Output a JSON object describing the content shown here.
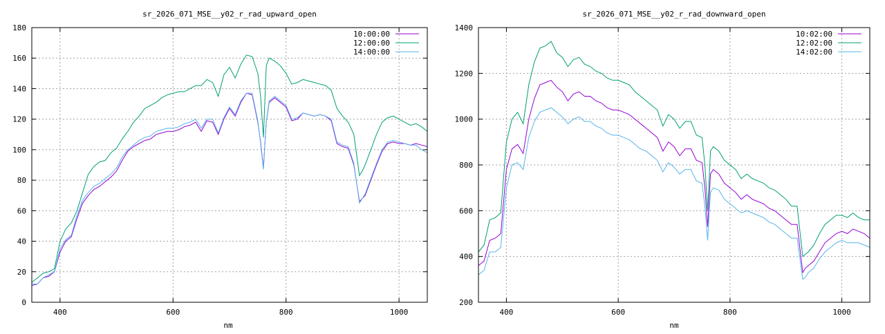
{
  "chart_data": [
    {
      "type": "line",
      "title": "sr_2026_071_MSE__y02_r_rad_upward_open",
      "xlabel": "nm",
      "ylabel": "",
      "xlim": [
        350,
        1050
      ],
      "ylim": [
        0,
        180
      ],
      "xticks": [
        400,
        600,
        800,
        1000
      ],
      "yticks": [
        0,
        20,
        40,
        60,
        80,
        100,
        120,
        140,
        160,
        180
      ],
      "grid": true,
      "legend_position": "top-right",
      "colors": [
        "#9400d3",
        "#009e73",
        "#56b4e9"
      ],
      "series": [
        {
          "name": "10:00:00",
          "color": "#9400d3",
          "x": [
            350,
            360,
            370,
            380,
            390,
            400,
            410,
            420,
            430,
            440,
            450,
            460,
            470,
            480,
            490,
            500,
            510,
            520,
            530,
            540,
            550,
            560,
            570,
            580,
            590,
            600,
            610,
            620,
            630,
            640,
            650,
            660,
            670,
            680,
            690,
            700,
            710,
            720,
            730,
            740,
            750,
            755,
            760,
            765,
            770,
            780,
            790,
            800,
            810,
            820,
            830,
            840,
            850,
            860,
            870,
            880,
            890,
            900,
            910,
            920,
            930,
            935,
            940,
            950,
            960,
            970,
            980,
            990,
            1000,
            1010,
            1020,
            1030,
            1040,
            1050
          ],
          "y": [
            11,
            12,
            16,
            17,
            20,
            33,
            40,
            43,
            55,
            65,
            70,
            74,
            76,
            79,
            82,
            86,
            93,
            99,
            102,
            104,
            106,
            107,
            110,
            111,
            112,
            112,
            113,
            115,
            116,
            118,
            112,
            119,
            118,
            110,
            120,
            127,
            122,
            131,
            137,
            136,
            118,
            105,
            88,
            118,
            131,
            134,
            131,
            128,
            119,
            120,
            124,
            123,
            122,
            123,
            122,
            119,
            104,
            102,
            101,
            90,
            66,
            68,
            70,
            80,
            90,
            99,
            104,
            105,
            104,
            104,
            103,
            104,
            103,
            102
          ]
        },
        {
          "name": "12:00:00",
          "color": "#009e73",
          "x": [
            350,
            360,
            370,
            380,
            390,
            400,
            410,
            420,
            430,
            440,
            450,
            460,
            470,
            480,
            490,
            500,
            510,
            520,
            530,
            540,
            550,
            560,
            570,
            580,
            590,
            600,
            610,
            620,
            630,
            640,
            650,
            660,
            670,
            680,
            690,
            700,
            710,
            720,
            730,
            740,
            750,
            755,
            760,
            765,
            770,
            780,
            790,
            800,
            810,
            820,
            830,
            840,
            850,
            860,
            870,
            880,
            890,
            900,
            910,
            920,
            930,
            935,
            940,
            950,
            960,
            970,
            980,
            990,
            1000,
            1010,
            1020,
            1030,
            1040,
            1050
          ],
          "y": [
            13,
            16,
            19,
            20,
            22,
            40,
            48,
            52,
            60,
            72,
            84,
            89,
            92,
            93,
            98,
            101,
            107,
            112,
            118,
            122,
            127,
            129,
            131,
            134,
            136,
            137,
            138,
            138,
            140,
            142,
            142,
            146,
            144,
            135,
            149,
            154,
            147,
            156,
            162,
            161,
            150,
            135,
            108,
            155,
            160,
            158,
            155,
            150,
            143,
            144,
            146,
            145,
            144,
            143,
            142,
            139,
            127,
            122,
            118,
            110,
            83,
            86,
            90,
            100,
            110,
            118,
            121,
            122,
            120,
            118,
            116,
            117,
            115,
            112
          ]
        },
        {
          "name": "14:00:00",
          "color": "#56b4e9",
          "x": [
            350,
            360,
            370,
            380,
            390,
            400,
            410,
            420,
            430,
            440,
            450,
            460,
            470,
            480,
            490,
            500,
            510,
            520,
            530,
            540,
            550,
            560,
            570,
            580,
            590,
            600,
            610,
            620,
            630,
            640,
            650,
            660,
            670,
            680,
            690,
            700,
            710,
            720,
            730,
            740,
            750,
            755,
            760,
            765,
            770,
            780,
            790,
            800,
            810,
            820,
            830,
            840,
            850,
            860,
            870,
            880,
            890,
            900,
            910,
            920,
            930,
            935,
            940,
            950,
            960,
            970,
            980,
            990,
            1000,
            1010,
            1020,
            1030,
            1040,
            1050
          ],
          "y": [
            12,
            12,
            16,
            18,
            20,
            35,
            41,
            44,
            57,
            67,
            72,
            76,
            78,
            81,
            84,
            88,
            95,
            100,
            103,
            106,
            108,
            109,
            112,
            113,
            114,
            114,
            115,
            117,
            118,
            120,
            114,
            120,
            120,
            111,
            121,
            128,
            123,
            132,
            137,
            137,
            119,
            104,
            87,
            118,
            132,
            135,
            132,
            129,
            120,
            121,
            124,
            123,
            122,
            123,
            122,
            120,
            105,
            103,
            102,
            91,
            65,
            68,
            71,
            81,
            91,
            100,
            105,
            106,
            105,
            104,
            103,
            103,
            100,
            98
          ]
        }
      ]
    },
    {
      "type": "line",
      "title": "sr_2026_071_MSE__y02_r_rad_downward_open",
      "xlabel": "nm",
      "ylabel": "",
      "xlim": [
        350,
        1050
      ],
      "ylim": [
        200,
        1400
      ],
      "xticks": [
        400,
        600,
        800,
        1000
      ],
      "yticks": [
        200,
        400,
        600,
        800,
        1000,
        1200,
        1400
      ],
      "grid": true,
      "legend_position": "top-right",
      "colors": [
        "#9400d3",
        "#009e73",
        "#56b4e9"
      ],
      "series": [
        {
          "name": "10:02:00",
          "color": "#9400d3",
          "x": [
            350,
            360,
            370,
            380,
            390,
            400,
            410,
            420,
            430,
            440,
            450,
            460,
            470,
            480,
            490,
            500,
            510,
            520,
            530,
            540,
            550,
            560,
            570,
            580,
            590,
            600,
            610,
            620,
            630,
            640,
            650,
            660,
            670,
            680,
            690,
            700,
            710,
            720,
            730,
            740,
            750,
            755,
            760,
            765,
            770,
            780,
            790,
            800,
            810,
            820,
            830,
            840,
            850,
            860,
            870,
            880,
            890,
            900,
            910,
            920,
            930,
            935,
            940,
            950,
            960,
            970,
            980,
            990,
            1000,
            1010,
            1020,
            1030,
            1040,
            1050
          ],
          "y": [
            360,
            380,
            470,
            480,
            500,
            780,
            870,
            890,
            850,
            1000,
            1090,
            1150,
            1160,
            1170,
            1140,
            1120,
            1080,
            1110,
            1120,
            1100,
            1100,
            1080,
            1070,
            1050,
            1040,
            1040,
            1030,
            1020,
            1000,
            980,
            960,
            940,
            920,
            860,
            900,
            880,
            840,
            870,
            870,
            820,
            810,
            700,
            530,
            760,
            780,
            760,
            720,
            700,
            680,
            650,
            670,
            650,
            640,
            630,
            610,
            600,
            580,
            560,
            540,
            540,
            330,
            350,
            360,
            380,
            420,
            460,
            480,
            500,
            510,
            500,
            520,
            510,
            500,
            480
          ]
        },
        {
          "name": "12:02:00",
          "color": "#009e73",
          "x": [
            350,
            360,
            370,
            380,
            390,
            400,
            410,
            420,
            430,
            440,
            450,
            460,
            470,
            480,
            490,
            500,
            510,
            520,
            530,
            540,
            550,
            560,
            570,
            580,
            590,
            600,
            610,
            620,
            630,
            640,
            650,
            660,
            670,
            680,
            690,
            700,
            710,
            720,
            730,
            740,
            750,
            755,
            760,
            765,
            770,
            780,
            790,
            800,
            810,
            820,
            830,
            840,
            850,
            860,
            870,
            880,
            890,
            900,
            910,
            920,
            930,
            935,
            940,
            950,
            960,
            970,
            980,
            990,
            1000,
            1010,
            1020,
            1030,
            1040,
            1050
          ],
          "y": [
            420,
            450,
            560,
            570,
            590,
            900,
            1000,
            1030,
            980,
            1150,
            1250,
            1310,
            1320,
            1340,
            1290,
            1270,
            1230,
            1260,
            1270,
            1240,
            1230,
            1210,
            1200,
            1180,
            1170,
            1170,
            1160,
            1150,
            1120,
            1100,
            1080,
            1060,
            1040,
            970,
            1020,
            1000,
            960,
            990,
            990,
            930,
            920,
            800,
            600,
            860,
            880,
            860,
            820,
            800,
            780,
            740,
            760,
            740,
            730,
            720,
            700,
            690,
            670,
            650,
            620,
            620,
            400,
            410,
            420,
            450,
            500,
            540,
            560,
            580,
            580,
            570,
            590,
            570,
            560,
            560
          ]
        },
        {
          "name": "14:02:00",
          "color": "#56b4e9",
          "x": [
            350,
            360,
            370,
            380,
            390,
            400,
            410,
            420,
            430,
            440,
            450,
            460,
            470,
            480,
            490,
            500,
            510,
            520,
            530,
            540,
            550,
            560,
            570,
            580,
            590,
            600,
            610,
            620,
            630,
            640,
            650,
            660,
            670,
            680,
            690,
            700,
            710,
            720,
            730,
            740,
            750,
            755,
            760,
            765,
            770,
            780,
            790,
            800,
            810,
            820,
            830,
            840,
            850,
            860,
            870,
            880,
            890,
            900,
            910,
            920,
            930,
            935,
            940,
            950,
            960,
            970,
            980,
            990,
            1000,
            1010,
            1020,
            1030,
            1040,
            1050
          ],
          "y": [
            320,
            340,
            420,
            420,
            440,
            700,
            800,
            810,
            780,
            920,
            990,
            1030,
            1040,
            1050,
            1030,
            1010,
            980,
            1000,
            1010,
            990,
            990,
            970,
            960,
            940,
            930,
            930,
            920,
            910,
            890,
            870,
            860,
            840,
            820,
            770,
            810,
            790,
            760,
            780,
            780,
            730,
            720,
            620,
            470,
            680,
            700,
            690,
            650,
            630,
            610,
            590,
            600,
            590,
            580,
            570,
            550,
            540,
            520,
            500,
            480,
            480,
            300,
            310,
            330,
            350,
            390,
            420,
            440,
            460,
            470,
            460,
            460,
            460,
            450,
            440
          ]
        }
      ]
    }
  ]
}
